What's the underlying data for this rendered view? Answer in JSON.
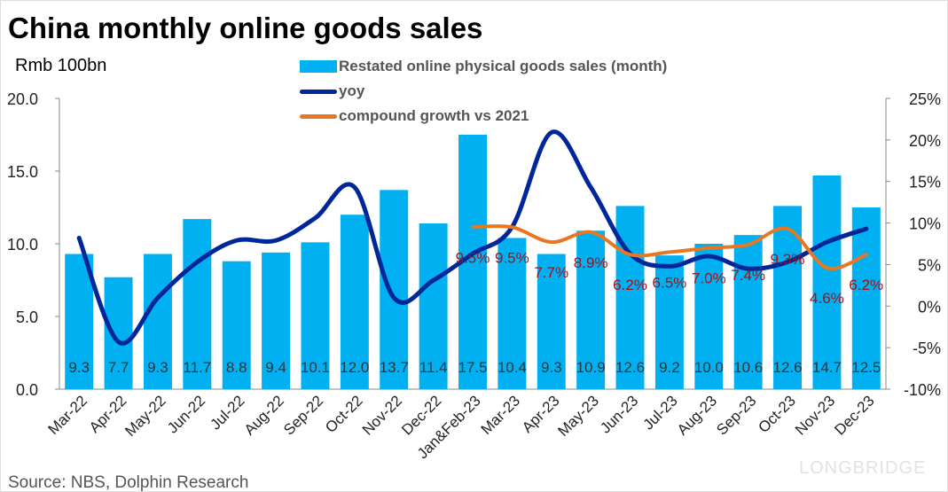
{
  "title": "China monthly online goods sales",
  "unit": "Rmb 100bn",
  "source": "Source: NBS, Dolphin Research",
  "watermark": "LONGBRIDGE",
  "chart_data": {
    "type": "bar+line",
    "title": "China monthly online goods sales",
    "ylabel": "Rmb 100bn",
    "ylim": [
      0,
      20
    ],
    "yticks": [
      "0.0",
      "5.0",
      "10.0",
      "15.0",
      "20.0"
    ],
    "y2lim": [
      -10,
      25
    ],
    "y2ticks": [
      "-10%",
      "-5%",
      "0%",
      "5%",
      "10%",
      "15%",
      "20%",
      "25%"
    ],
    "categories": [
      "Mar-22",
      "Apr-22",
      "May-22",
      "Jun-22",
      "Jul-22",
      "Aug-22",
      "Sep-22",
      "Oct-22",
      "Nov-22",
      "Dec-22",
      "Jan&Feb-23",
      "Mar-23",
      "Apr-23",
      "May-23",
      "Jun-23",
      "Jul-23",
      "Aug-23",
      "Sep-23",
      "Oct-23",
      "Nov-23",
      "Dec-23"
    ],
    "series": [
      {
        "name": "Restated online physical goods sales  (month)",
        "type": "bar",
        "axis": "left",
        "color": "#00b0f0",
        "values": [
          9.3,
          7.7,
          9.3,
          11.7,
          8.8,
          9.4,
          10.1,
          12.0,
          13.7,
          11.4,
          17.5,
          10.4,
          9.3,
          10.9,
          12.6,
          9.2,
          10.0,
          10.6,
          12.6,
          14.7,
          12.5
        ],
        "labels": [
          "9.3",
          "7.7",
          "9.3",
          "11.7",
          "8.8",
          "9.4",
          "10.1",
          "12.0",
          "13.7",
          "11.4",
          "17.5",
          "10.4",
          "9.3",
          "10.9",
          "12.6",
          "9.2",
          "10.0",
          "10.6",
          "12.6",
          "14.7",
          "12.5"
        ]
      },
      {
        "name": "yoy",
        "type": "line",
        "axis": "right",
        "color": "#002699",
        "values": [
          8.2,
          -4.3,
          1.0,
          5.3,
          7.9,
          7.9,
          10.6,
          14.3,
          1.0,
          3.1,
          6.3,
          9.5,
          20.9,
          14.3,
          6.3,
          4.8,
          6.0,
          4.5,
          5.3,
          7.7,
          9.3
        ]
      },
      {
        "name": "compound growth vs 2021",
        "type": "line",
        "axis": "right",
        "color": "#e87722",
        "values": [
          null,
          null,
          null,
          null,
          null,
          null,
          null,
          null,
          null,
          null,
          9.5,
          9.5,
          7.7,
          8.9,
          6.2,
          6.5,
          7.0,
          7.4,
          9.3,
          4.6,
          6.2
        ],
        "labels": [
          "",
          "",
          "",
          "",
          "",
          "",
          "",
          "",
          "",
          "",
          "9.5%",
          "9.5%",
          "7.7%",
          "8.9%",
          "6.2%",
          "6.5%",
          "7.0%",
          "7.4%",
          "9.3%",
          "4.6%",
          "6.2%"
        ]
      }
    ],
    "legend": "top-center",
    "grid": false
  }
}
